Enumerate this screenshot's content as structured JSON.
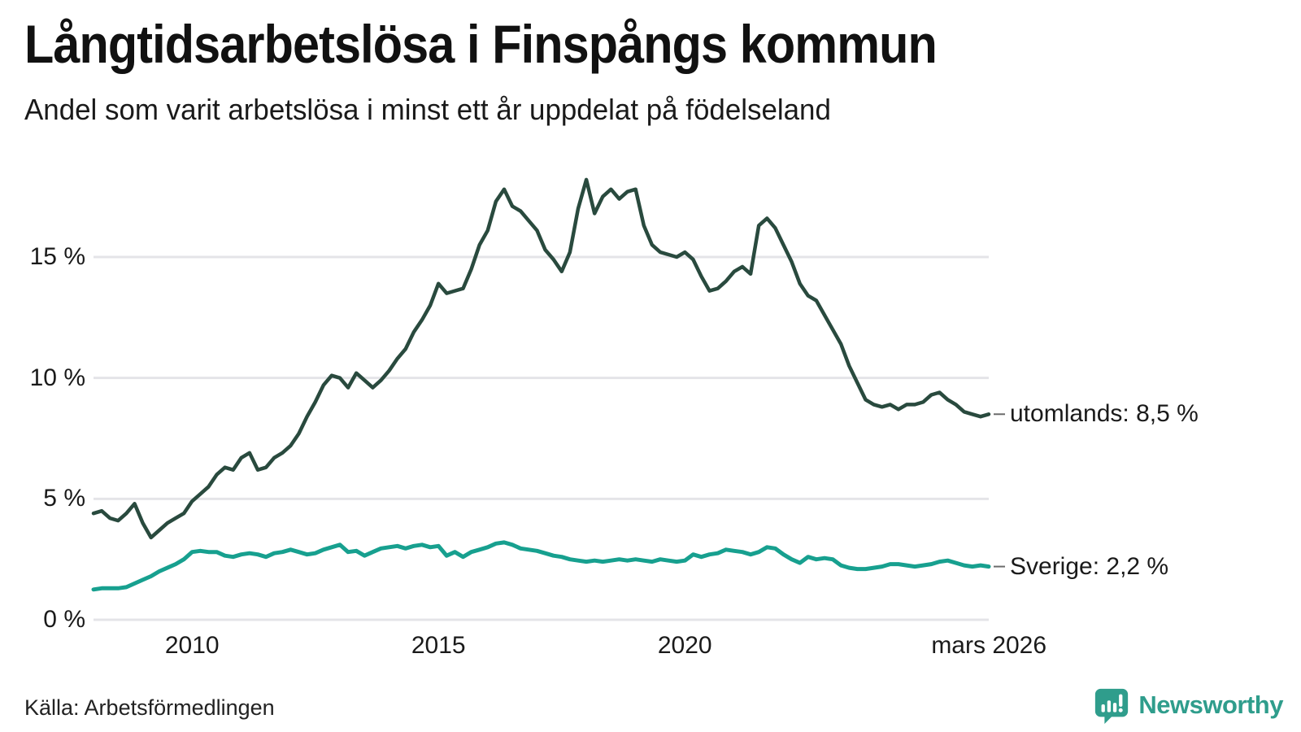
{
  "header": {
    "title": "Långtidsarbetslösa i Finspångs kommun",
    "subtitle": "Andel som varit arbetslösa i minst ett år uppdelat på födelseland"
  },
  "footer": {
    "source": "Källa: Arbetsförmedlingen",
    "brand": "Newsworthy"
  },
  "colors": {
    "utomlands_line": "#294a3e",
    "sverige_line": "#17a08f",
    "brand_teal": "#2f9d8c",
    "grid": "#e4e4e8",
    "tick_dash": "#6b6b6b",
    "text": "#1a1a1a"
  },
  "chart_data": {
    "type": "line",
    "title": "Långtidsarbetslösa i Finspångs kommun",
    "subtitle": "Andel som varit arbetslösa i minst ett år uppdelat på födelseland",
    "source": "Källa: Arbetsförmedlingen",
    "xlabel": "",
    "ylabel": "",
    "x_start_year": 2008,
    "x_step_months": 2,
    "xlim": [
      2008,
      2026.17
    ],
    "ylim": [
      0,
      19
    ],
    "grid": "horizontal",
    "legend_position": "right-end-labels",
    "y_axis": {
      "unit": "%",
      "ticks": [
        {
          "value": 0,
          "label": "0 %"
        },
        {
          "value": 5,
          "label": "5 %"
        },
        {
          "value": 10,
          "label": "10 %"
        },
        {
          "value": 15,
          "label": "15 %"
        }
      ]
    },
    "x_axis": {
      "ticks": [
        {
          "x": 2010,
          "label": "2010"
        },
        {
          "x": 2015,
          "label": "2015"
        },
        {
          "x": 2020,
          "label": "2020"
        },
        {
          "x": 2026.17,
          "label": "mars 2026"
        }
      ]
    },
    "series": [
      {
        "name": "utomlands",
        "color": "#294a3e",
        "stroke_width": 4.5,
        "end_label": "utomlands: 8,5 %",
        "end_value": 8.5,
        "values": [
          4.4,
          4.5,
          4.2,
          4.1,
          4.4,
          4.8,
          4.0,
          3.4,
          3.7,
          4.0,
          4.2,
          4.4,
          4.9,
          5.2,
          5.5,
          6.0,
          6.3,
          6.2,
          6.7,
          6.9,
          6.2,
          6.3,
          6.7,
          6.9,
          7.2,
          7.7,
          8.4,
          9.0,
          9.7,
          10.1,
          10.0,
          9.6,
          10.2,
          9.9,
          9.6,
          9.9,
          10.3,
          10.8,
          11.2,
          11.9,
          12.4,
          13.0,
          13.9,
          13.5,
          13.6,
          13.7,
          14.5,
          15.5,
          16.1,
          17.3,
          17.8,
          17.1,
          16.9,
          16.5,
          16.1,
          15.3,
          14.9,
          14.4,
          15.2,
          17.0,
          18.2,
          16.8,
          17.5,
          17.8,
          17.4,
          17.7,
          17.8,
          16.3,
          15.5,
          15.2,
          15.1,
          15.0,
          15.2,
          14.9,
          14.2,
          13.6,
          13.7,
          14.0,
          14.4,
          14.6,
          14.3,
          16.3,
          16.6,
          16.2,
          15.5,
          14.8,
          13.9,
          13.4,
          13.2,
          12.6,
          12.0,
          11.4,
          10.5,
          9.8,
          9.1,
          8.9,
          8.8,
          8.9,
          8.7,
          8.9,
          8.9,
          9.0,
          9.3,
          9.4,
          9.1,
          8.9,
          8.6,
          8.5,
          8.4,
          8.5
        ]
      },
      {
        "name": "Sverige",
        "color": "#17a08f",
        "stroke_width": 5,
        "end_label": "Sverige: 2,2 %",
        "end_value": 2.2,
        "values": [
          1.25,
          1.3,
          1.3,
          1.3,
          1.35,
          1.5,
          1.65,
          1.8,
          2.0,
          2.15,
          2.3,
          2.5,
          2.8,
          2.85,
          2.8,
          2.8,
          2.65,
          2.6,
          2.7,
          2.75,
          2.7,
          2.6,
          2.75,
          2.8,
          2.9,
          2.8,
          2.7,
          2.75,
          2.9,
          3.0,
          3.1,
          2.8,
          2.85,
          2.65,
          2.8,
          2.95,
          3.0,
          3.05,
          2.95,
          3.05,
          3.1,
          3.0,
          3.05,
          2.65,
          2.8,
          2.6,
          2.8,
          2.9,
          3.0,
          3.15,
          3.2,
          3.1,
          2.95,
          2.9,
          2.85,
          2.75,
          2.65,
          2.6,
          2.5,
          2.45,
          2.4,
          2.45,
          2.4,
          2.45,
          2.5,
          2.45,
          2.5,
          2.45,
          2.4,
          2.5,
          2.45,
          2.4,
          2.45,
          2.7,
          2.6,
          2.7,
          2.75,
          2.9,
          2.85,
          2.8,
          2.7,
          2.8,
          3.0,
          2.95,
          2.7,
          2.5,
          2.35,
          2.6,
          2.5,
          2.55,
          2.5,
          2.25,
          2.15,
          2.1,
          2.1,
          2.15,
          2.2,
          2.3,
          2.3,
          2.25,
          2.2,
          2.25,
          2.3,
          2.4,
          2.45,
          2.35,
          2.25,
          2.2,
          2.25,
          2.2
        ]
      }
    ]
  }
}
